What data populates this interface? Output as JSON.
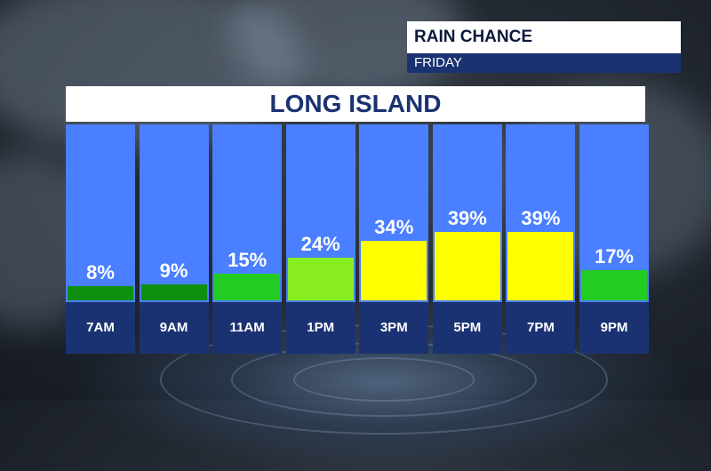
{
  "header": {
    "title": "RAIN CHANCE",
    "subtitle": "FRIDAY"
  },
  "region": "LONG ISLAND",
  "chart_data": {
    "type": "bar",
    "title": "RAIN CHANCE",
    "subtitle": "FRIDAY",
    "region": "LONG ISLAND",
    "categories": [
      "7AM",
      "9AM",
      "11AM",
      "1PM",
      "3PM",
      "5PM",
      "7PM",
      "9PM"
    ],
    "values": [
      8,
      9,
      15,
      24,
      34,
      39,
      39,
      17
    ],
    "value_labels": [
      "8%",
      "9%",
      "15%",
      "24%",
      "34%",
      "39%",
      "39%",
      "17%"
    ],
    "bar_colors": [
      "#0f8f0f",
      "#0f8f0f",
      "#22cc22",
      "#88ee22",
      "#ffff00",
      "#ffff00",
      "#ffff00",
      "#22cc22"
    ],
    "background_color": "#4a7fff",
    "label_bar_color": "#1b3272",
    "ylim": [
      0,
      100
    ]
  }
}
